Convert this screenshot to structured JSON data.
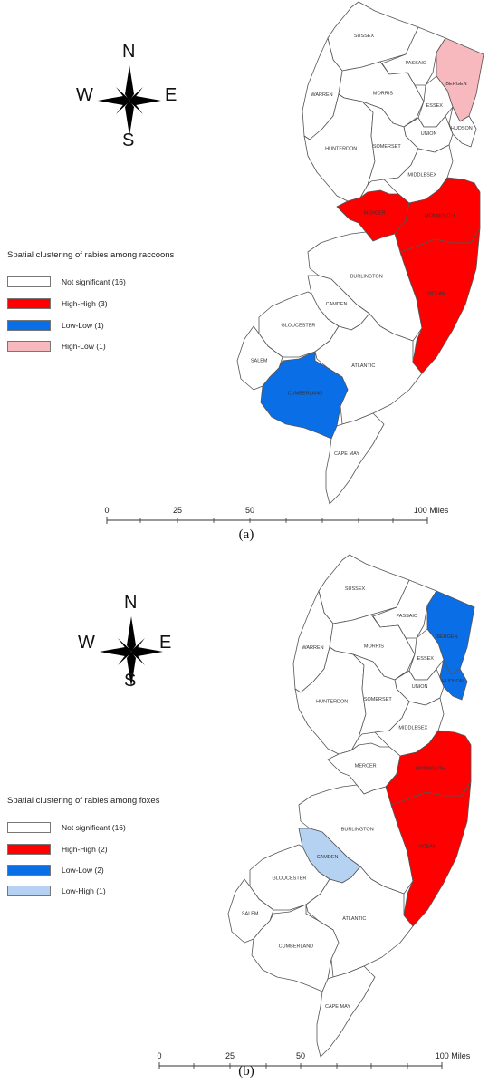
{
  "colors": {
    "not_significant": "#ffffff",
    "high_high": "#ff0000",
    "low_low": "#0a6fe6",
    "high_low": "#f7b9bd",
    "low_high": "#b5d2f2"
  },
  "compass": {
    "north": "N",
    "south": "S",
    "east": "E",
    "west": "W"
  },
  "panel_a": {
    "caption": "(a)",
    "legend_title": "Spatial clustering of rabies among raccoons",
    "legend": [
      {
        "label": "Not significant (16)",
        "color": "#ffffff"
      },
      {
        "label": "High-High (3)",
        "color": "#ff0000"
      },
      {
        "label": "Low-Low (1)",
        "color": "#0a6fe6"
      },
      {
        "label": "High-Low (1)",
        "color": "#f7b9bd"
      }
    ],
    "scale": {
      "labels": [
        "0",
        "25",
        "50",
        "100 Miles"
      ]
    },
    "counties": {
      "sussex": {
        "name": "SUSSEX",
        "cluster": "not_significant"
      },
      "passaic": {
        "name": "PASSAIC",
        "cluster": "not_significant"
      },
      "bergen": {
        "name": "BERGEN",
        "cluster": "high_low"
      },
      "warren": {
        "name": "WARREN",
        "cluster": "not_significant"
      },
      "morris": {
        "name": "MORRIS",
        "cluster": "not_significant"
      },
      "essex": {
        "name": "ESSEX",
        "cluster": "not_significant"
      },
      "hudson": {
        "name": "HUDSON",
        "cluster": "not_significant"
      },
      "union": {
        "name": "UNION",
        "cluster": "not_significant"
      },
      "hunterdon": {
        "name": "HUNTERDON",
        "cluster": "not_significant"
      },
      "somerset": {
        "name": "SOMERSET",
        "cluster": "not_significant"
      },
      "middlesex": {
        "name": "MIDDLESEX",
        "cluster": "not_significant"
      },
      "mercer": {
        "name": "MERCER",
        "cluster": "high_high"
      },
      "monmouth": {
        "name": "MONMOUTH",
        "cluster": "high_high"
      },
      "burlington": {
        "name": "BURLINGTON",
        "cluster": "not_significant"
      },
      "ocean": {
        "name": "OCEAN",
        "cluster": "high_high"
      },
      "camden": {
        "name": "CAMDEN",
        "cluster": "not_significant"
      },
      "gloucester": {
        "name": "GLOUCESTER",
        "cluster": "not_significant"
      },
      "salem": {
        "name": "SALEM",
        "cluster": "not_significant"
      },
      "atlantic": {
        "name": "ATLANTIC",
        "cluster": "not_significant"
      },
      "cumberland": {
        "name": "CUMBERLAND",
        "cluster": "low_low"
      },
      "capemay": {
        "name": "CAPE MAY",
        "cluster": "not_significant"
      }
    }
  },
  "panel_b": {
    "caption": "(b)",
    "legend_title": "Spatial clustering of rabies among foxes",
    "legend": [
      {
        "label": "Not significant (16)",
        "color": "#ffffff"
      },
      {
        "label": "High-High (2)",
        "color": "#ff0000"
      },
      {
        "label": "Low-Low (2)",
        "color": "#0a6fe6"
      },
      {
        "label": "Low-High (1)",
        "color": "#b5d2f2"
      }
    ],
    "scale": {
      "labels": [
        "0",
        "25",
        "50",
        "100 Miles"
      ]
    },
    "counties": {
      "sussex": {
        "name": "SUSSEX",
        "cluster": "not_significant"
      },
      "passaic": {
        "name": "PASSAIC",
        "cluster": "not_significant"
      },
      "bergen": {
        "name": "BERGEN",
        "cluster": "low_low"
      },
      "warren": {
        "name": "WARREN",
        "cluster": "not_significant"
      },
      "morris": {
        "name": "MORRIS",
        "cluster": "not_significant"
      },
      "essex": {
        "name": "ESSEX",
        "cluster": "not_significant"
      },
      "hudson": {
        "name": "HUDSON",
        "cluster": "low_low"
      },
      "union": {
        "name": "UNION",
        "cluster": "not_significant"
      },
      "hunterdon": {
        "name": "HUNTERDON",
        "cluster": "not_significant"
      },
      "somerset": {
        "name": "SOMERSET",
        "cluster": "not_significant"
      },
      "middlesex": {
        "name": "MIDDLESEX",
        "cluster": "not_significant"
      },
      "mercer": {
        "name": "MERCER",
        "cluster": "not_significant"
      },
      "monmouth": {
        "name": "MONMOUTH",
        "cluster": "high_high"
      },
      "burlington": {
        "name": "BURLINGTON",
        "cluster": "not_significant"
      },
      "ocean": {
        "name": "OCEAN",
        "cluster": "high_high"
      },
      "camden": {
        "name": "CAMDEN",
        "cluster": "low_high"
      },
      "gloucester": {
        "name": "GLOUCESTER",
        "cluster": "not_significant"
      },
      "salem": {
        "name": "SALEM",
        "cluster": "not_significant"
      },
      "atlantic": {
        "name": "ATLANTIC",
        "cluster": "not_significant"
      },
      "cumberland": {
        "name": "CUMBERLAND",
        "cluster": "not_significant"
      },
      "capemay": {
        "name": "CAPE MAY",
        "cluster": "not_significant"
      }
    }
  }
}
